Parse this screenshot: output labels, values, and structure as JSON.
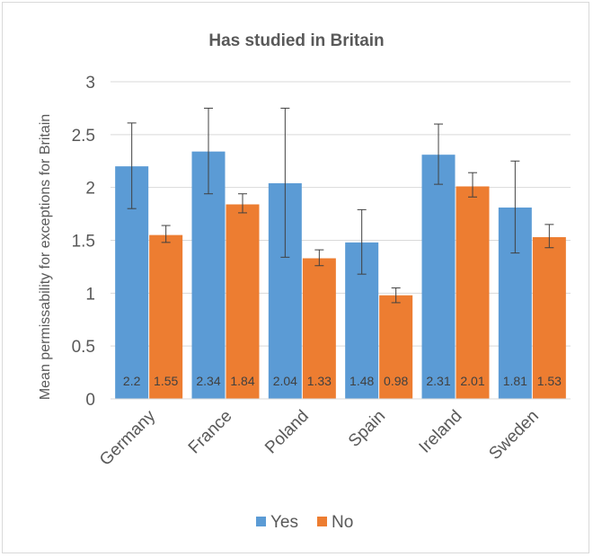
{
  "chart_data": {
    "type": "bar",
    "title": "Has studied in Britain",
    "xlabel": "",
    "ylabel": "Mean permissability for exceptions for Britain",
    "categories": [
      "Germany",
      "France",
      "Poland",
      "Spain",
      "Ireland",
      "Sweden"
    ],
    "ylim": [
      0,
      3
    ],
    "yticks": [
      0,
      0.5,
      1,
      1.5,
      2,
      2.5,
      3
    ],
    "grid": true,
    "legend": "bottom",
    "series": [
      {
        "name": "Yes",
        "color": "#5b9bd5",
        "values": [
          2.2,
          2.34,
          2.04,
          1.48,
          2.31,
          1.81
        ],
        "error_low": [
          1.8,
          1.94,
          1.34,
          1.18,
          2.03,
          1.38
        ],
        "error_high": [
          2.61,
          2.75,
          2.75,
          1.79,
          2.6,
          2.25
        ]
      },
      {
        "name": "No",
        "color": "#ed7d31",
        "values": [
          1.55,
          1.84,
          1.33,
          0.98,
          2.01,
          1.53
        ],
        "error_low": [
          1.48,
          1.76,
          1.26,
          0.91,
          1.91,
          1.43
        ],
        "error_high": [
          1.64,
          1.94,
          1.41,
          1.05,
          2.14,
          1.65
        ]
      }
    ],
    "data_labels": {
      "Yes": [
        "2.2",
        "2.34",
        "2.04",
        "1.48",
        "2.31",
        "1.81"
      ],
      "No": [
        "1.55",
        "1.84",
        "1.33",
        "0.98",
        "2.01",
        "1.53"
      ]
    }
  }
}
